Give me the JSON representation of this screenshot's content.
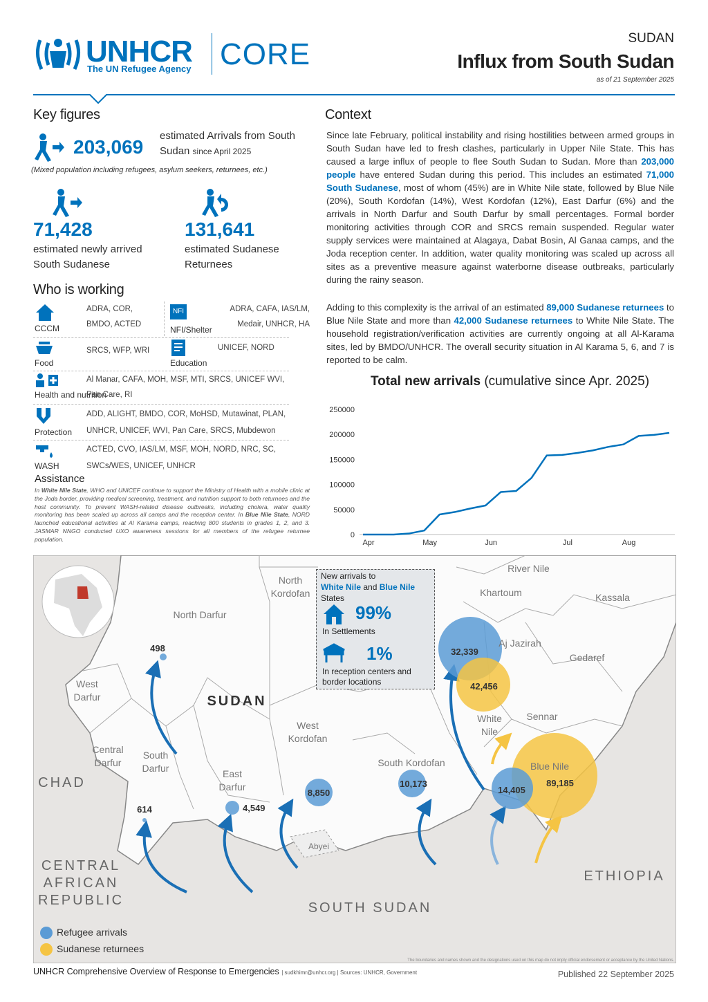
{
  "header": {
    "logo_name": "UNHCR",
    "logo_tagline": "The UN Refugee Agency",
    "core": "CORE",
    "country": "SUDAN",
    "title": "Influx from South Sudan",
    "date": "as of 21 September 2025"
  },
  "key_figures": {
    "title": "Key figures",
    "main": {
      "value": "203,069",
      "label": "estimated Arrivals from South Sudan",
      "since": "since April 2025",
      "note": "(Mixed population including refugees, asylum seekers, returnees, etc.)"
    },
    "items": [
      {
        "value": "71,428",
        "label": "estimated newly arrived South Sudanese"
      },
      {
        "value": "131,641",
        "label": "estimated Sudanese Returnees"
      }
    ]
  },
  "who_is_working": {
    "title": "Who is working",
    "sectors": [
      {
        "name": "CCCM",
        "partners": "ADRA, COR, BMDO, ACTED"
      },
      {
        "name": "NFI/Shelter",
        "icon_label": "NFI",
        "partners": "ADRA, CAFA, IAS/LM, Medair, UNHCR, HA"
      },
      {
        "name": "Food",
        "partners": "SRCS, WFP, WRI"
      },
      {
        "name": "Education",
        "partners": "UNICEF, NORD"
      },
      {
        "name": "Health and nutrition",
        "partners": "Al Manar, CAFA, MOH, MSF, MTI, SRCS, UNICEF WVI, Pan Care, RI"
      },
      {
        "name": "Protection",
        "partners": "ADD, ALIGHT, BMDO, COR, MoHSD, Mutawinat, PLAN, UNHCR, UNICEF, WVI, Pan Care, SRCS, Mubdewon"
      },
      {
        "name": "WASH",
        "partners": "ACTED, CVO, IAS/LM, MSF, MOH, NORD, NRC, SC, SWCs/WES, UNICEF, UNHCR"
      }
    ]
  },
  "assistance": {
    "title": "Assistance",
    "segments": [
      "In ",
      "White Nile State",
      ", WHO and UNICEF continue to support the Ministry of Health with a mobile clinic at the Joda border, providing medical screening, treatment, and nutrition support to both returnees and the host community. To prevent WASH-related disease outbreaks, including cholera, water quality monitoring has been scaled up across all camps and the reception center. In ",
      "Blue Nile State",
      ", NORD launched educational activities at Al Karama camps, reaching 800 students in grades 1, 2, and 3. JASMAR NNGO conducted UXO awareness sessions for all members of the refugee returnee population."
    ]
  },
  "context": {
    "title": "Context",
    "paragraphs": [
      [
        "Since late February, political instability and rising hostilities between armed groups in South Sudan have led to fresh clashes, particularly in Upper Nile State. This has caused a large influx of people to flee South Sudan to Sudan. More than ",
        "203,000 people",
        " have entered Sudan during this period. This includes an estimated ",
        "71,000 South Sudanese",
        ", most of whom (45%) are in White Nile state, followed by Blue Nile (20%), South Kordofan (14%), West Kordofan (12%), East Darfur (6%) and the arrivals in North Darfur and South Darfur by small percentages. Formal border monitoring activities through COR and SRCS remain suspended. Regular water supply services were maintained at Alagaya, Dabat Bosin, Al Ganaa camps, and the Joda reception center. In addition, water quality monitoring was scaled up across all sites as a preventive measure against waterborne disease outbreaks, particularly during the rainy season."
      ],
      [
        "Adding to this complexity is the arrival of an estimated ",
        "89,000 Sudanese returnees",
        " to Blue Nile State and more than ",
        "42,000 Sudanese returnees",
        " to White Nile State. The household registration/verification activities are currently ongoing at all Al-Karama sites, led by BMDO/UNHCR. The overall security situation in Al Karama 5, 6, and 7 is reported to be calm."
      ]
    ]
  },
  "chart_data": {
    "type": "line",
    "title": "Total new arrivals",
    "subtitle": "(cumulative since Apr. 2025)",
    "categories": [
      "Apr",
      null,
      null,
      null,
      "May",
      null,
      null,
      null,
      "Jun",
      null,
      null,
      null,
      null,
      "Jul",
      null,
      null,
      null,
      "Aug",
      null,
      null,
      null
    ],
    "values": [
      0,
      0,
      0,
      2000,
      8000,
      40000,
      45000,
      52000,
      58000,
      85000,
      87000,
      113000,
      158000,
      159000,
      163000,
      168000,
      175000,
      180000,
      197000,
      199000,
      203069
    ],
    "color": "#0072bc",
    "ylim": [
      0,
      250000
    ],
    "yticks": [
      0,
      50000,
      100000,
      150000,
      200000,
      250000
    ],
    "grid": false
  },
  "map": {
    "regions": [
      "North Kordofan",
      "River Nile",
      "Khartoum",
      "Kassala",
      "North Darfur",
      "Aj Jazirah",
      "Gedaref",
      "West Darfur",
      "White Nile",
      "Sennar",
      "Central Darfur",
      "South Darfur",
      "West Kordofan",
      "Blue Nile",
      "East Darfur",
      "South Kordofan",
      "Abyei"
    ],
    "country_label": "SUDAN",
    "neighbours": [
      "CHAD",
      "CENTRAL AFRICAN REPUBLIC",
      "ETHIOPIA",
      "SOUTH SUDAN"
    ],
    "bubbles": [
      {
        "label": "498",
        "group": 0
      },
      {
        "label": "614",
        "group": 0
      },
      {
        "label": "4,549",
        "group": 0
      },
      {
        "label": "8,850",
        "group": 0
      },
      {
        "label": "10,173",
        "group": 0
      },
      {
        "label": "32,339",
        "group": 0
      },
      {
        "label": "42,456",
        "group": 1
      },
      {
        "label": "14,405",
        "group": 0
      },
      {
        "label": "89,185",
        "group": 1
      }
    ],
    "inset": {
      "title": [
        "New arrivals to",
        "White Nile",
        "and",
        "Blue Nile",
        "States"
      ],
      "stats": [
        {
          "value": "99%",
          "label": "In Settlements"
        },
        {
          "value": "1%",
          "label": "In reception centers and border locations"
        }
      ]
    },
    "legend": [
      {
        "name": "Refugee arrivals",
        "color": "#5b9bd5"
      },
      {
        "name": "Sudanese returnees",
        "color": "#f5c443"
      }
    ],
    "disclaimer": "The boundaries and names shown and the designations used on this map do not imply official endorsement or acceptance by the United Nations."
  },
  "footer": {
    "program": "UNHCR Comprehensive Overview of Response to Emergencies",
    "contact": "| sudkhimr@unhcr.org | Sources: UNHCR, Government",
    "published": "Published 22 September 2025"
  }
}
